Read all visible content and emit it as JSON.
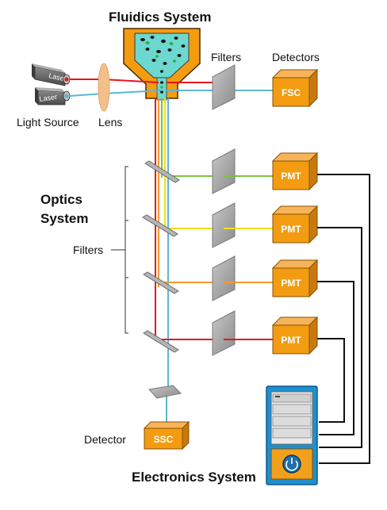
{
  "titles": {
    "fluidics": "Fluidics System",
    "optics_line1": "Optics",
    "optics_line2": "System",
    "electronics": "Electronics System"
  },
  "labels": {
    "filters_top": "Filters",
    "detectors_top": "Detectors",
    "light_source": "Light Source",
    "lens": "Lens",
    "filters_side": "Filters",
    "detector_bottom": "Detector"
  },
  "components": {
    "laser": "Laser",
    "fsc": "FSC",
    "pmt": "PMT",
    "ssc": "SSC"
  },
  "colors": {
    "orange": "#f39c12",
    "red": "#e8141e",
    "blue": "#5bb6d8",
    "green": "#7dc242",
    "yellow": "#f2e01a",
    "orange_beam": "#f59a2e",
    "black": "#111111",
    "computer": "#1f8fcf"
  }
}
